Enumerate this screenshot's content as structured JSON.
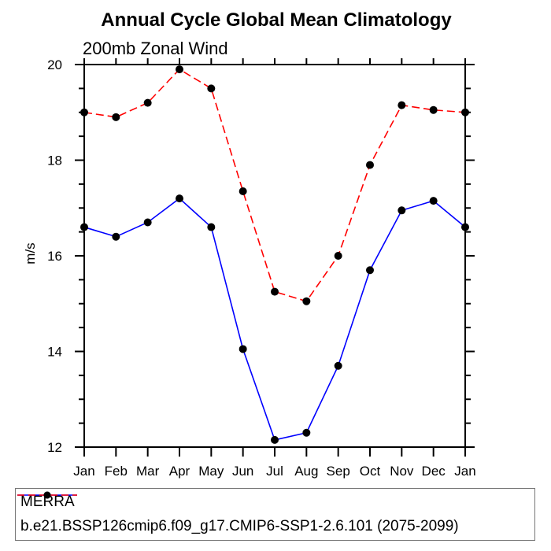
{
  "chart_data": {
    "type": "line",
    "title": "Annual Cycle Global Mean Climatology",
    "subtitle": "200mb Zonal Wind",
    "ylabel": "m/s",
    "x_categories": [
      "Jan",
      "Feb",
      "Mar",
      "Apr",
      "May",
      "Jun",
      "Jul",
      "Aug",
      "Sep",
      "Oct",
      "Nov",
      "Dec",
      "Jan"
    ],
    "ylim": [
      12,
      20
    ],
    "y_major_ticks": [
      12,
      14,
      16,
      18,
      20
    ],
    "y_minor_step": 0.5,
    "grid": false,
    "plot_background": "#ffffff",
    "axis_color": "#000000",
    "legend_position": "bottom-left-box",
    "series": [
      {
        "name": "MERRA",
        "color": "#0000ff",
        "line_style": "solid",
        "marker": "filled-circle",
        "marker_color": "#000000",
        "values": [
          16.6,
          16.4,
          16.7,
          17.2,
          16.6,
          14.05,
          12.15,
          12.3,
          13.7,
          15.7,
          16.95,
          17.15,
          16.6
        ]
      },
      {
        "name": "b.e21.BSSP126cmip6.f09_g17.CMIP6-SSP1-2.6.101 (2075-2099)",
        "color": "#ff0000",
        "line_style": "dashed",
        "marker": "filled-circle",
        "marker_color": "#000000",
        "values": [
          19.0,
          18.9,
          19.2,
          19.9,
          19.5,
          17.35,
          15.25,
          15.05,
          16.0,
          17.9,
          19.15,
          19.05,
          19.0
        ]
      }
    ]
  }
}
